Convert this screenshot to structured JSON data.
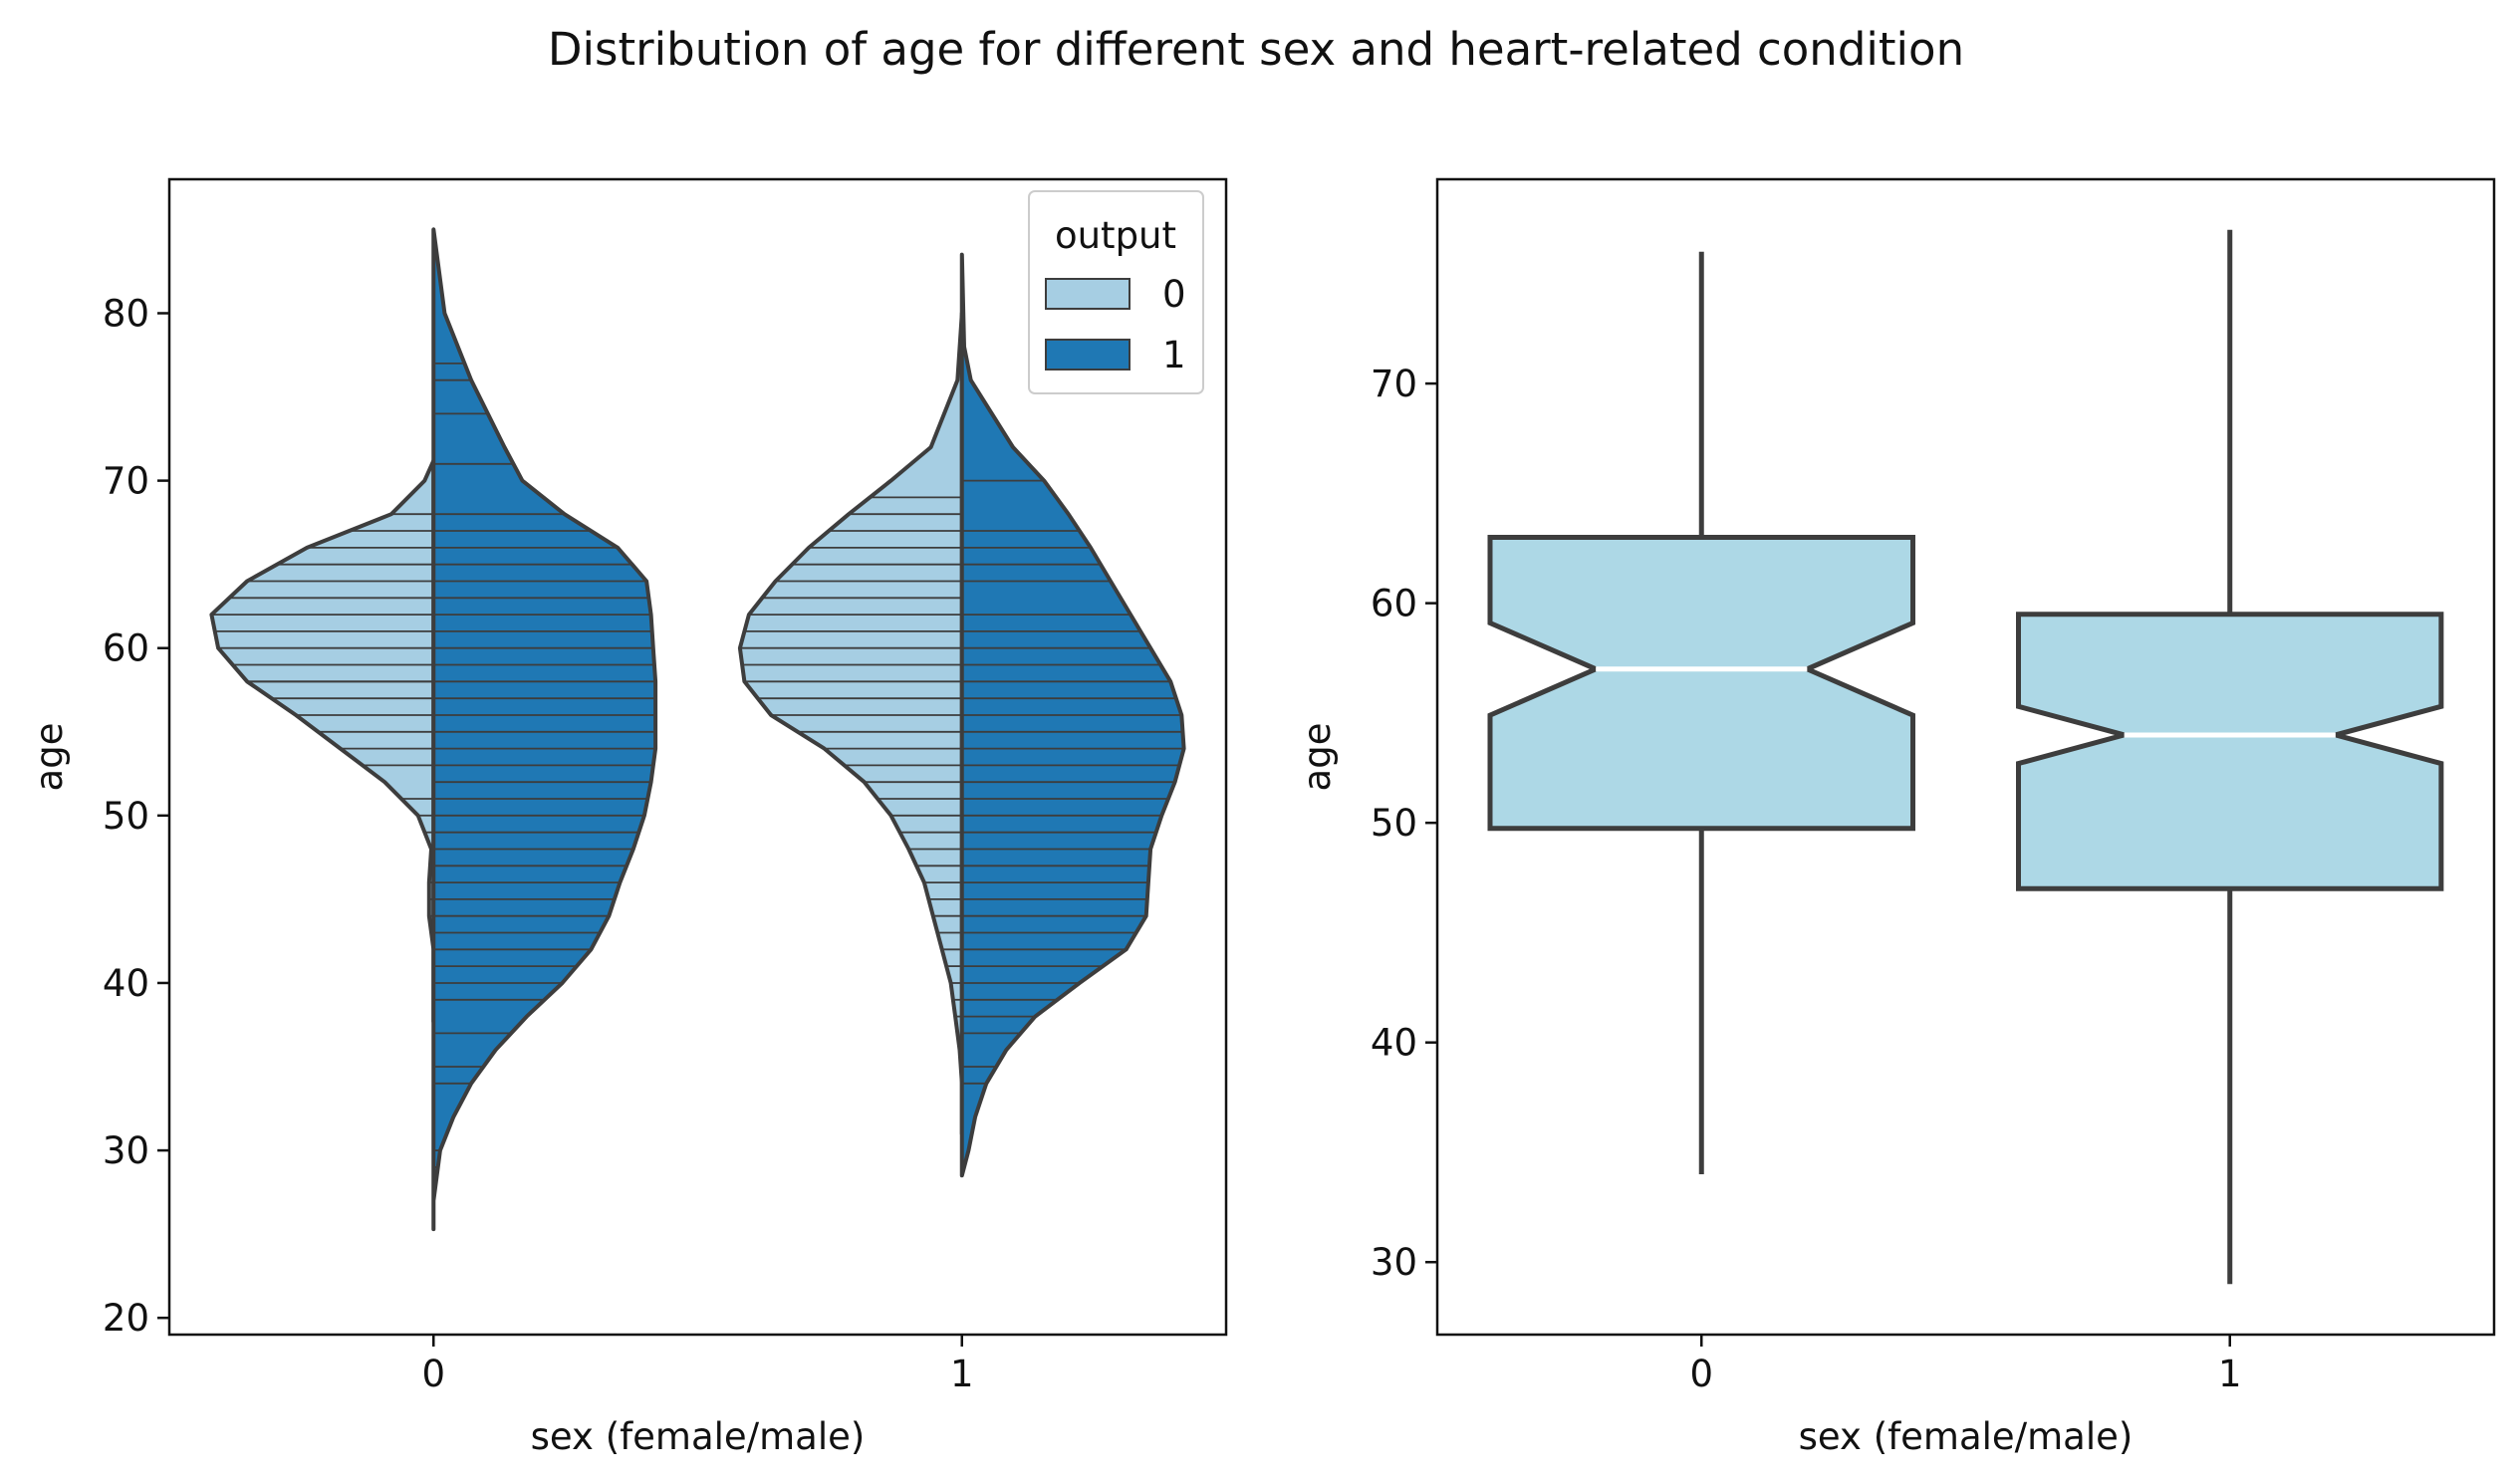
{
  "figure": {
    "title": "Distribution of age for different sex and heart-related condition"
  },
  "chart_data": [
    {
      "type": "violin",
      "split": true,
      "inner": "stick",
      "xlabel": "sex (female/male)",
      "ylabel": "age",
      "categories": [
        "0",
        "1"
      ],
      "ylim": [
        19,
        88
      ],
      "yticks": [
        20,
        30,
        40,
        50,
        60,
        70,
        80
      ],
      "legend": {
        "title": "output",
        "placement": "upper right",
        "entries": [
          {
            "label": "0",
            "color": "#a6cee3"
          },
          {
            "label": "1",
            "color": "#1f78b4"
          }
        ]
      },
      "series": [
        {
          "name": "0",
          "side": "left",
          "color": "#a6cee3",
          "groups": [
            {
              "category": "0",
              "profile": [
                [
                  71.2,
                  0.0
                ],
                [
                  70,
                  0.04
                ],
                [
                  68,
                  0.19
                ],
                [
                  66,
                  0.57
                ],
                [
                  64,
                  0.84
                ],
                [
                  62,
                  1.0
                ],
                [
                  60,
                  0.97
                ],
                [
                  58,
                  0.84
                ],
                [
                  56,
                  0.62
                ],
                [
                  54,
                  0.42
                ],
                [
                  52,
                  0.22
                ],
                [
                  50,
                  0.07
                ],
                [
                  48,
                  0.01
                ],
                [
                  46,
                  0.02
                ],
                [
                  44,
                  0.02
                ],
                [
                  42,
                  0.0
                ],
                [
                  40,
                  0.0
                ],
                [
                  37.7,
                  0.0
                ]
              ],
              "ages": [
                37,
                39,
                40,
                41,
                42,
                43,
                44,
                45,
                46,
                46,
                48,
                49,
                50,
                51,
                53,
                54,
                55,
                56,
                57,
                58,
                58,
                59,
                60,
                61,
                62,
                63,
                64,
                65,
                66,
                67,
                68
              ]
            },
            {
              "category": "1",
              "profile": [
                [
                  80,
                  0.0
                ],
                [
                  76,
                  0.02
                ],
                [
                  72,
                  0.14
                ],
                [
                  70,
                  0.32
                ],
                [
                  68,
                  0.51
                ],
                [
                  66,
                  0.69
                ],
                [
                  64,
                  0.84
                ],
                [
                  62,
                  0.96
                ],
                [
                  60,
                  1.0
                ],
                [
                  58,
                  0.98
                ],
                [
                  56,
                  0.86
                ],
                [
                  54,
                  0.62
                ],
                [
                  52,
                  0.44
                ],
                [
                  50,
                  0.32
                ],
                [
                  48,
                  0.24
                ],
                [
                  46,
                  0.17
                ],
                [
                  44,
                  0.13
                ],
                [
                  42,
                  0.09
                ],
                [
                  40,
                  0.05
                ],
                [
                  38,
                  0.03
                ],
                [
                  36,
                  0.01
                ],
                [
                  34,
                  0.0
                ],
                [
                  31,
                  0.0
                ]
              ],
              "ages": [
                35,
                36,
                38,
                39,
                40,
                41,
                42,
                43,
                44,
                45,
                46,
                47,
                48,
                49,
                50,
                51,
                52,
                53,
                54,
                55,
                56,
                57,
                58,
                59,
                60,
                61,
                62,
                63,
                64,
                65,
                66,
                67,
                68,
                69
              ]
            }
          ]
        },
        {
          "name": "1",
          "side": "right",
          "color": "#1f78b4",
          "groups": [
            {
              "category": "0",
              "profile": [
                [
                  85,
                  0.0
                ],
                [
                  80,
                  0.05
                ],
                [
                  76,
                  0.17
                ],
                [
                  72,
                  0.32
                ],
                [
                  70,
                  0.4
                ],
                [
                  68,
                  0.59
                ],
                [
                  66,
                  0.83
                ],
                [
                  64,
                  0.96
                ],
                [
                  62,
                  0.98
                ],
                [
                  60,
                  0.99
                ],
                [
                  58,
                  1.0
                ],
                [
                  56,
                  1.0
                ],
                [
                  54,
                  1.0
                ],
                [
                  52,
                  0.98
                ],
                [
                  50,
                  0.95
                ],
                [
                  48,
                  0.9
                ],
                [
                  46,
                  0.84
                ],
                [
                  44,
                  0.79
                ],
                [
                  42,
                  0.71
                ],
                [
                  40,
                  0.58
                ],
                [
                  38,
                  0.42
                ],
                [
                  36,
                  0.28
                ],
                [
                  34,
                  0.17
                ],
                [
                  32,
                  0.09
                ],
                [
                  30,
                  0.03
                ],
                [
                  27,
                  0.0
                ],
                [
                  25.3,
                  0.0
                ]
              ],
              "ages": [
                29,
                30,
                34,
                35,
                37,
                39,
                40,
                41,
                42,
                43,
                44,
                45,
                46,
                47,
                48,
                49,
                50,
                51,
                52,
                53,
                54,
                55,
                56,
                57,
                58,
                59,
                60,
                61,
                62,
                63,
                64,
                65,
                66,
                67,
                68,
                71,
                74,
                76,
                77
              ]
            },
            {
              "category": "1",
              "profile": [
                [
                  83.5,
                  0.0
                ],
                [
                  78,
                  0.01
                ],
                [
                  76,
                  0.04
                ],
                [
                  72,
                  0.23
                ],
                [
                  70,
                  0.37
                ],
                [
                  68,
                  0.48
                ],
                [
                  66,
                  0.58
                ],
                [
                  64,
                  0.67
                ],
                [
                  62,
                  0.76
                ],
                [
                  60,
                  0.85
                ],
                [
                  58,
                  0.94
                ],
                [
                  56,
                  0.99
                ],
                [
                  54,
                  1.0
                ],
                [
                  52,
                  0.96
                ],
                [
                  50,
                  0.9
                ],
                [
                  48,
                  0.85
                ],
                [
                  46,
                  0.84
                ],
                [
                  44,
                  0.83
                ],
                [
                  42,
                  0.74
                ],
                [
                  40,
                  0.53
                ],
                [
                  38,
                  0.33
                ],
                [
                  36,
                  0.2
                ],
                [
                  34,
                  0.11
                ],
                [
                  32,
                  0.06
                ],
                [
                  30,
                  0.03
                ],
                [
                  28.5,
                  0.0
                ]
              ],
              "ages": [
                34,
                35,
                37,
                38,
                39,
                40,
                41,
                42,
                43,
                44,
                45,
                46,
                47,
                48,
                49,
                50,
                51,
                52,
                53,
                54,
                55,
                56,
                57,
                58,
                59,
                60,
                61,
                62,
                64,
                65,
                66,
                67,
                70
              ]
            }
          ]
        }
      ]
    },
    {
      "type": "box",
      "notch": true,
      "xlabel": "sex (female/male)",
      "ylabel": "age",
      "categories": [
        "0",
        "1"
      ],
      "ylim": [
        26.7,
        79.3
      ],
      "yticks": [
        30,
        40,
        50,
        60,
        70
      ],
      "color": "#add8e6",
      "median_color": "#ffffff",
      "boxes": [
        {
          "category": "0",
          "whislo": 34,
          "q1": 49.75,
          "med": 57,
          "q3": 63,
          "whishi": 76,
          "notch_low": 54.9,
          "notch_high": 59.1
        },
        {
          "category": "1",
          "whislo": 29,
          "q1": 47,
          "med": 54,
          "q3": 59.5,
          "whishi": 77,
          "notch_low": 52.7,
          "notch_high": 55.3
        }
      ]
    }
  ]
}
